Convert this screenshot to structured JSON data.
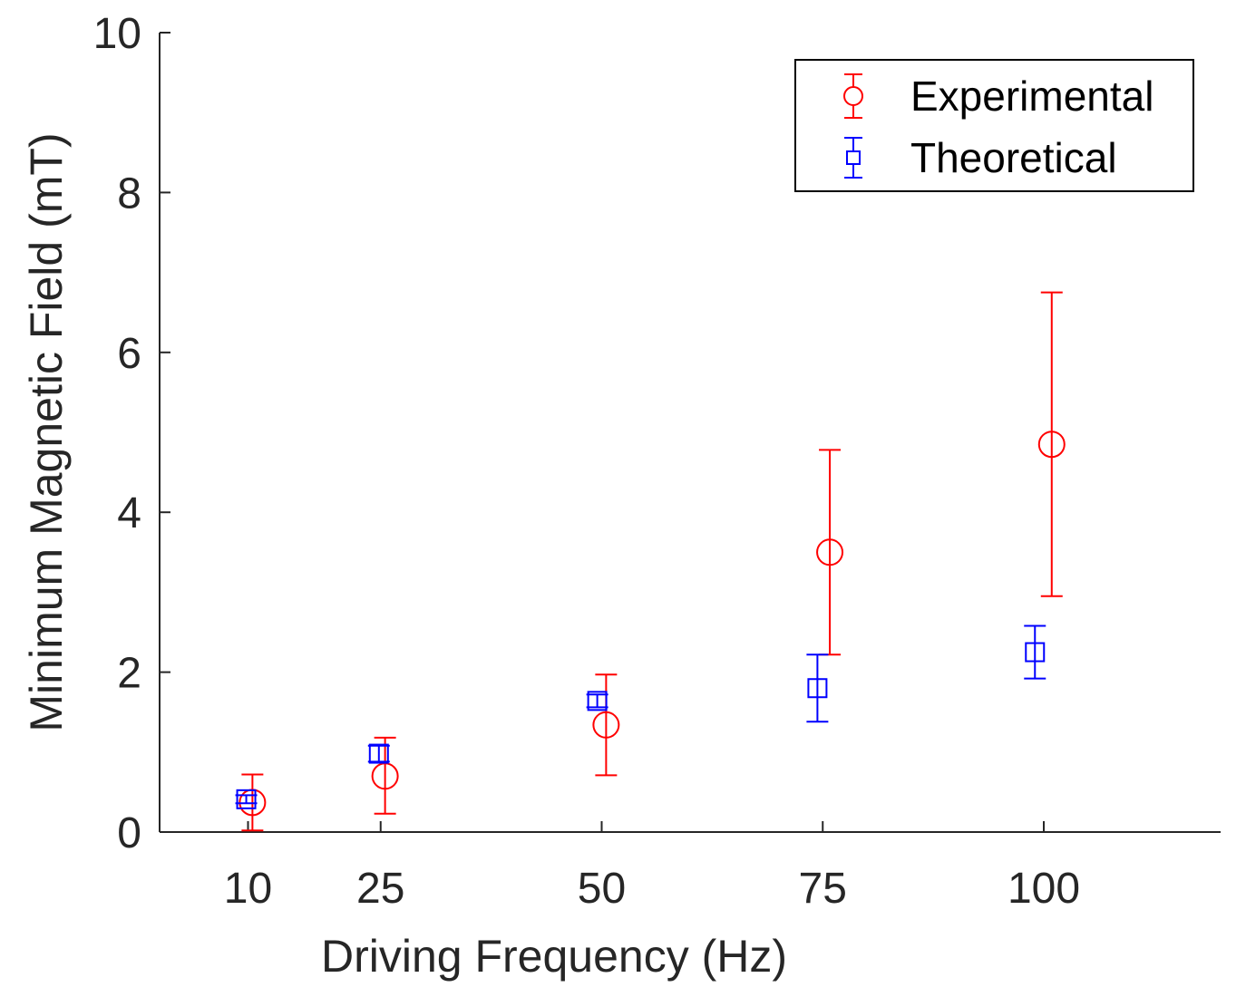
{
  "chart_data": {
    "type": "scatter",
    "title": "",
    "xlabel": "Driving Frequency (Hz)",
    "ylabel": "Minimum Magnetic Field (mT)",
    "xlim": [
      0,
      120
    ],
    "ylim": [
      0,
      10
    ],
    "x_ticks": [
      10,
      25,
      50,
      75,
      100
    ],
    "y_ticks": [
      0,
      2,
      4,
      6,
      8,
      10
    ],
    "grid": false,
    "legend_position": "top-right",
    "series": [
      {
        "name": "Experimental",
        "marker": "circle",
        "color": "#ff0000",
        "x": [
          10.5,
          25.5,
          50.5,
          75.8,
          100.9
        ],
        "y": [
          0.37,
          0.7,
          1.34,
          3.5,
          4.85
        ],
        "err_low": [
          0.35,
          0.47,
          0.63,
          1.28,
          1.9
        ],
        "err_high": [
          0.35,
          0.48,
          0.63,
          1.28,
          1.9
        ]
      },
      {
        "name": "Theoretical",
        "marker": "square",
        "color": "#0000ff",
        "x": [
          9.8,
          24.8,
          49.5,
          74.4,
          99.0
        ],
        "y": [
          0.41,
          0.98,
          1.64,
          1.8,
          2.25
        ],
        "err_low": [
          0.05,
          0.1,
          0.08,
          0.42,
          0.33
        ],
        "err_high": [
          0.05,
          0.1,
          0.08,
          0.42,
          0.33
        ]
      }
    ]
  }
}
